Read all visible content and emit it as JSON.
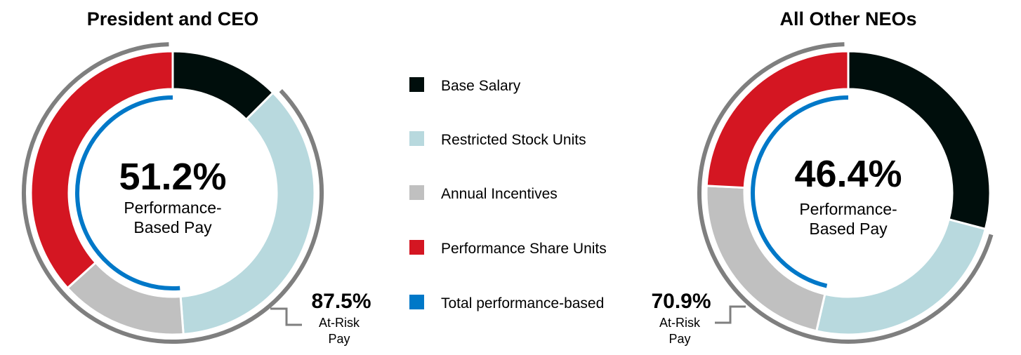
{
  "colors": {
    "base_salary": "#000e0c",
    "restricted_stock_units": "#b8d9de",
    "annual_incentives": "#c0c0c0",
    "performance_share_units": "#d41622",
    "total_performance_based": "#0078c8",
    "at_risk_ring": "#7f7f7f"
  },
  "chart_data": [
    {
      "type": "pie",
      "title": "President and CEO",
      "categories": [
        "Base Salary",
        "Restricted Stock Units",
        "Annual Incentives",
        "Performance Share Units"
      ],
      "values": [
        12.5,
        36.3,
        14.5,
        36.7
      ],
      "center_value": "51.2%",
      "center_label": [
        "Performance-",
        "Based Pay"
      ],
      "performance_based_percent": 51.2,
      "at_risk_value": "87.5%",
      "at_risk_label": [
        "At-Risk",
        "Pay"
      ],
      "at_risk_percent": 87.5
    },
    {
      "type": "pie",
      "title": "All Other NEOs",
      "categories": [
        "Base Salary",
        "Restricted Stock Units",
        "Annual Incentives",
        "Performance Share Units"
      ],
      "values": [
        29.1,
        24.5,
        22.2,
        24.2
      ],
      "center_value": "46.4%",
      "center_label": [
        "Performance-",
        "Based Pay"
      ],
      "performance_based_percent": 46.4,
      "at_risk_value": "70.9%",
      "at_risk_label": [
        "At-Risk",
        "Pay"
      ],
      "at_risk_percent": 70.9
    }
  ],
  "legend": [
    {
      "label": "Base Salary",
      "color_key": "base_salary"
    },
    {
      "label": "Restricted Stock Units",
      "color_key": "restricted_stock_units"
    },
    {
      "label": "Annual  Incentives",
      "color_key": "annual_incentives"
    },
    {
      "label": "Performance Share Units",
      "color_key": "performance_share_units"
    },
    {
      "label": "Total performance-based",
      "color_key": "total_performance_based"
    }
  ]
}
